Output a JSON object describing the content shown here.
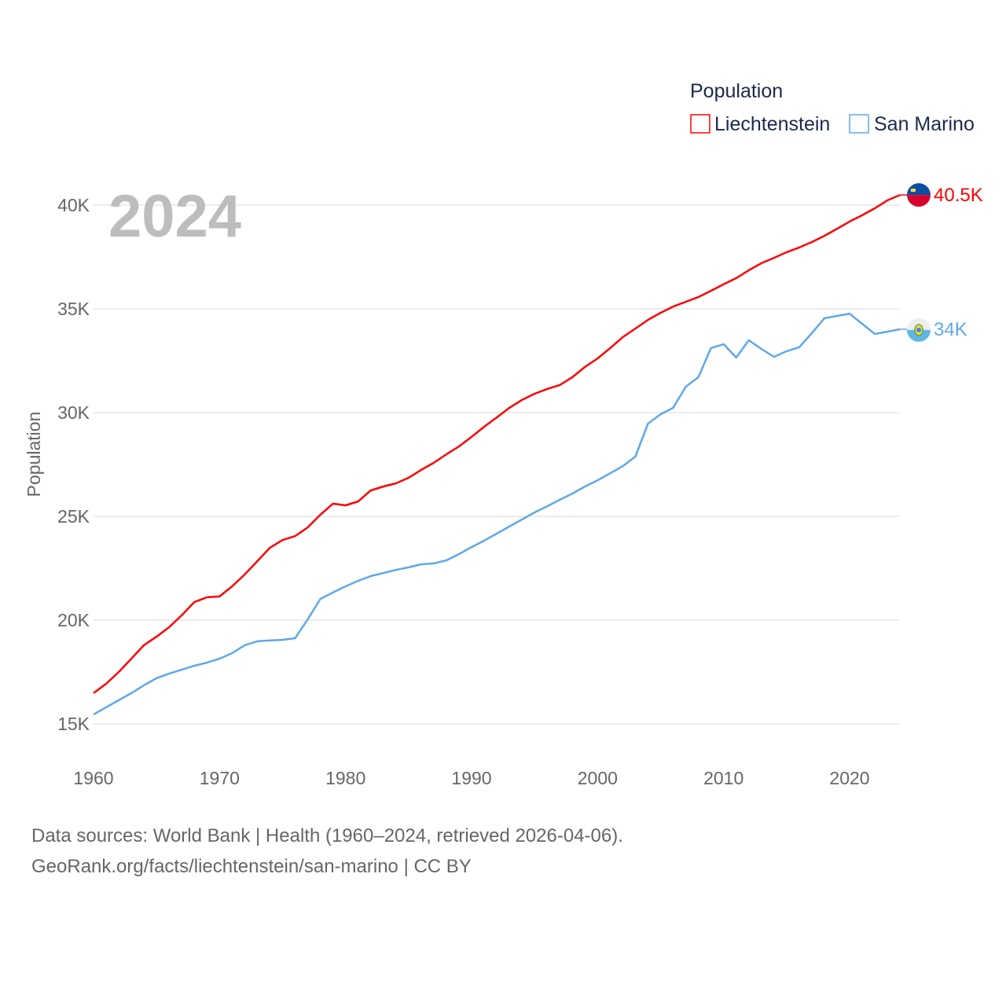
{
  "chart_data": {
    "type": "line",
    "title": "",
    "watermark_year": "2024",
    "xlabel": "",
    "ylabel": "Population",
    "xlim": [
      1960,
      2024
    ],
    "ylim": [
      15000,
      41000
    ],
    "x_ticks": [
      "1960",
      "1970",
      "1980",
      "1990",
      "2000",
      "2010",
      "2020"
    ],
    "y_ticks": [
      {
        "value": 15000,
        "label": "15K"
      },
      {
        "value": 20000,
        "label": "20K"
      },
      {
        "value": 25000,
        "label": "25K"
      },
      {
        "value": 30000,
        "label": "30K"
      },
      {
        "value": 35000,
        "label": "35K"
      },
      {
        "value": 40000,
        "label": "40K"
      }
    ],
    "grid": true,
    "legend": {
      "title": "Population",
      "placement": "top-right"
    },
    "x": [
      1960,
      1961,
      1962,
      1963,
      1964,
      1965,
      1966,
      1967,
      1968,
      1969,
      1970,
      1971,
      1972,
      1973,
      1974,
      1975,
      1976,
      1977,
      1978,
      1979,
      1980,
      1981,
      1982,
      1983,
      1984,
      1985,
      1986,
      1987,
      1988,
      1989,
      1990,
      1991,
      1992,
      1993,
      1994,
      1995,
      1996,
      1997,
      1998,
      1999,
      2000,
      2001,
      2002,
      2003,
      2004,
      2005,
      2006,
      2007,
      2008,
      2009,
      2010,
      2011,
      2012,
      2013,
      2014,
      2015,
      2016,
      2017,
      2018,
      2019,
      2020,
      2021,
      2022,
      2023,
      2024
    ],
    "series": [
      {
        "name": "Liechtenstein",
        "color": "#ff0000",
        "end_label": "40.5K",
        "flag": "liechtenstein-flag",
        "values": [
          16480,
          16930,
          17500,
          18140,
          18790,
          19200,
          19660,
          20230,
          20870,
          21100,
          21140,
          21630,
          22200,
          22840,
          23490,
          23860,
          24050,
          24470,
          25080,
          25610,
          25530,
          25720,
          26250,
          26440,
          26590,
          26860,
          27240,
          27580,
          27990,
          28370,
          28830,
          29320,
          29770,
          30230,
          30610,
          30910,
          31140,
          31330,
          31710,
          32200,
          32610,
          33110,
          33640,
          34050,
          34470,
          34810,
          35110,
          35340,
          35570,
          35870,
          36180,
          36480,
          36860,
          37200,
          37460,
          37730,
          37960,
          38220,
          38520,
          38860,
          39210,
          39510,
          39850,
          40230,
          40490
        ]
      },
      {
        "name": "San Marino",
        "color": "#5fa8ea",
        "end_label": "34K",
        "flag": "san-marino-flag",
        "values": [
          15450,
          15800,
          16140,
          16480,
          16860,
          17200,
          17420,
          17610,
          17800,
          17950,
          18140,
          18410,
          18790,
          18980,
          19020,
          19050,
          19130,
          20040,
          21020,
          21330,
          21630,
          21890,
          22120,
          22270,
          22420,
          22540,
          22690,
          22730,
          22880,
          23180,
          23520,
          23830,
          24170,
          24510,
          24850,
          25190,
          25490,
          25800,
          26100,
          26440,
          26740,
          27080,
          27420,
          27880,
          29470,
          29920,
          30230,
          31250,
          31710,
          33110,
          33300,
          32650,
          33490,
          33070,
          32690,
          32960,
          33150,
          33830,
          34550,
          34660,
          34770,
          34280,
          33790,
          33900,
          34020
        ]
      }
    ]
  },
  "source": {
    "line1": "Data sources: World Bank | Health (1960–2024, retrieved 2026-04-06).",
    "line2": "GeoRank.org/facts/liechtenstein/san-marino | CC BY"
  }
}
